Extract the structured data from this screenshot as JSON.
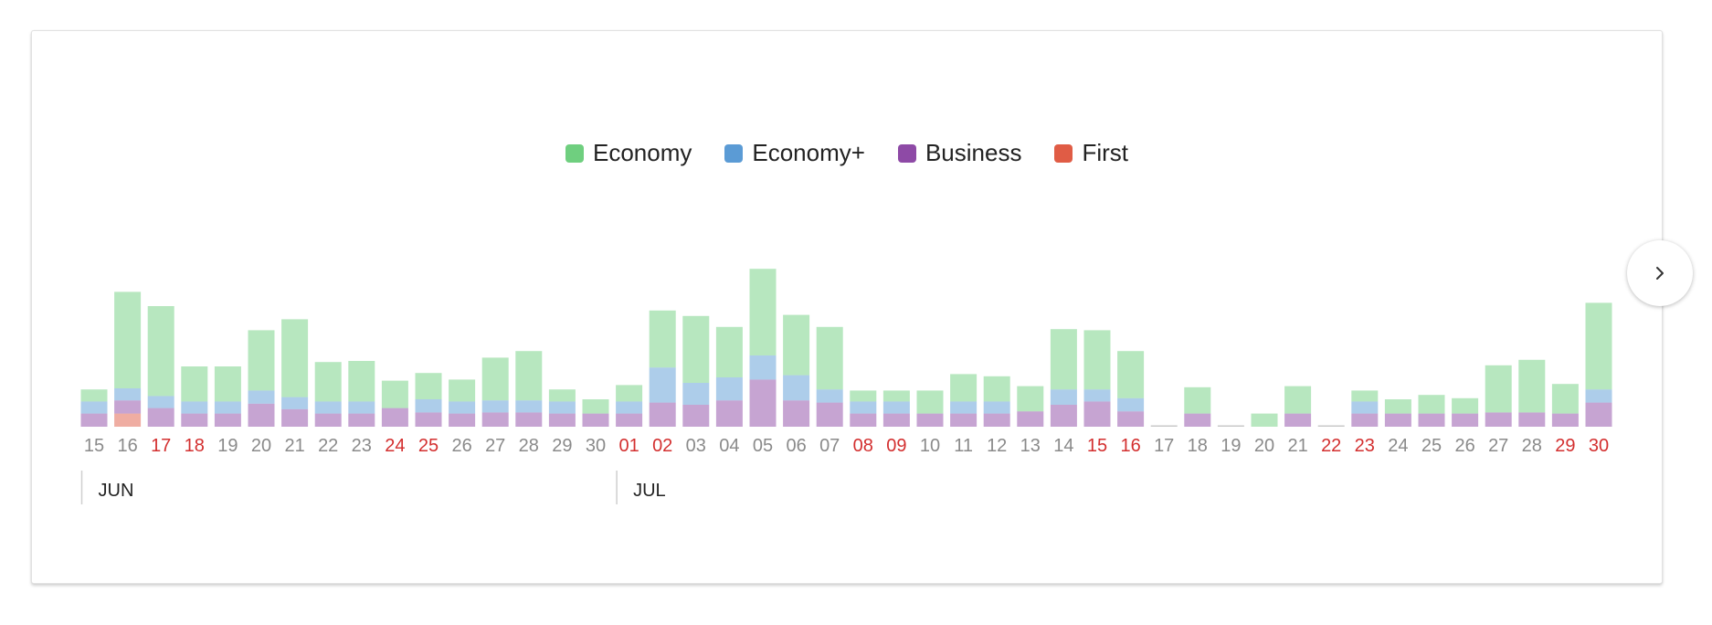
{
  "chart_data": {
    "type": "bar",
    "stacked": true,
    "title": "",
    "xlabel": "",
    "ylabel": "",
    "legend_position": "top-center",
    "grid": false,
    "ylim": [
      0,
      150
    ],
    "months": [
      {
        "label": "JUN",
        "start_index": 0
      },
      {
        "label": "JUL",
        "start_index": 16
      }
    ],
    "categories": [
      "15",
      "16",
      "17",
      "18",
      "19",
      "20",
      "21",
      "22",
      "23",
      "24",
      "25",
      "26",
      "27",
      "28",
      "29",
      "30",
      "01",
      "02",
      "03",
      "04",
      "05",
      "06",
      "07",
      "08",
      "09",
      "10",
      "11",
      "12",
      "13",
      "14",
      "15",
      "16",
      "17",
      "18",
      "19",
      "20",
      "21",
      "22",
      "23",
      "24",
      "25",
      "26",
      "27",
      "28",
      "29",
      "30"
    ],
    "highlighted": [
      false,
      false,
      true,
      true,
      false,
      false,
      false,
      false,
      false,
      true,
      true,
      false,
      false,
      false,
      false,
      false,
      true,
      true,
      false,
      false,
      false,
      false,
      false,
      true,
      true,
      false,
      false,
      false,
      false,
      false,
      true,
      true,
      false,
      false,
      false,
      false,
      false,
      true,
      true,
      false,
      false,
      false,
      false,
      false,
      true,
      true
    ],
    "series": [
      {
        "name": "First",
        "color": "#e05c45",
        "values": [
          0,
          12,
          0,
          0,
          0,
          0,
          0,
          0,
          0,
          0,
          0,
          0,
          0,
          0,
          0,
          0,
          0,
          0,
          0,
          0,
          0,
          0,
          0,
          0,
          0,
          0,
          0,
          0,
          0,
          0,
          0,
          0,
          0,
          0,
          0,
          0,
          0,
          0,
          0,
          0,
          0,
          0,
          0,
          0,
          0,
          0
        ]
      },
      {
        "name": "Business",
        "color": "#8e4aa6",
        "values": [
          12,
          12,
          17,
          12,
          12,
          21,
          16,
          12,
          12,
          17,
          13,
          12,
          13,
          13,
          12,
          12,
          12,
          22,
          20,
          24,
          43,
          24,
          22,
          12,
          12,
          12,
          12,
          12,
          14,
          20,
          23,
          14,
          1,
          12,
          1,
          0,
          12,
          1,
          12,
          12,
          12,
          12,
          13,
          13,
          12,
          22
        ]
      },
      {
        "name": "Economy+",
        "color": "#5b9bd5",
        "values": [
          11,
          11,
          11,
          11,
          11,
          12,
          11,
          11,
          11,
          0,
          12,
          11,
          11,
          11,
          11,
          0,
          11,
          32,
          20,
          21,
          22,
          23,
          12,
          11,
          11,
          0,
          11,
          11,
          0,
          14,
          11,
          12,
          0,
          0,
          0,
          0,
          0,
          0,
          11,
          0,
          0,
          0,
          0,
          0,
          0,
          12
        ]
      },
      {
        "name": "Economy",
        "color": "#6fcf7f",
        "values": [
          11,
          88,
          82,
          32,
          32,
          55,
          71,
          36,
          37,
          25,
          24,
          20,
          39,
          45,
          11,
          13,
          15,
          52,
          61,
          46,
          79,
          55,
          57,
          10,
          10,
          21,
          25,
          23,
          23,
          55,
          54,
          43,
          0,
          24,
          0,
          12,
          25,
          0,
          10,
          13,
          17,
          14,
          43,
          48,
          27,
          79
        ]
      }
    ]
  }
}
